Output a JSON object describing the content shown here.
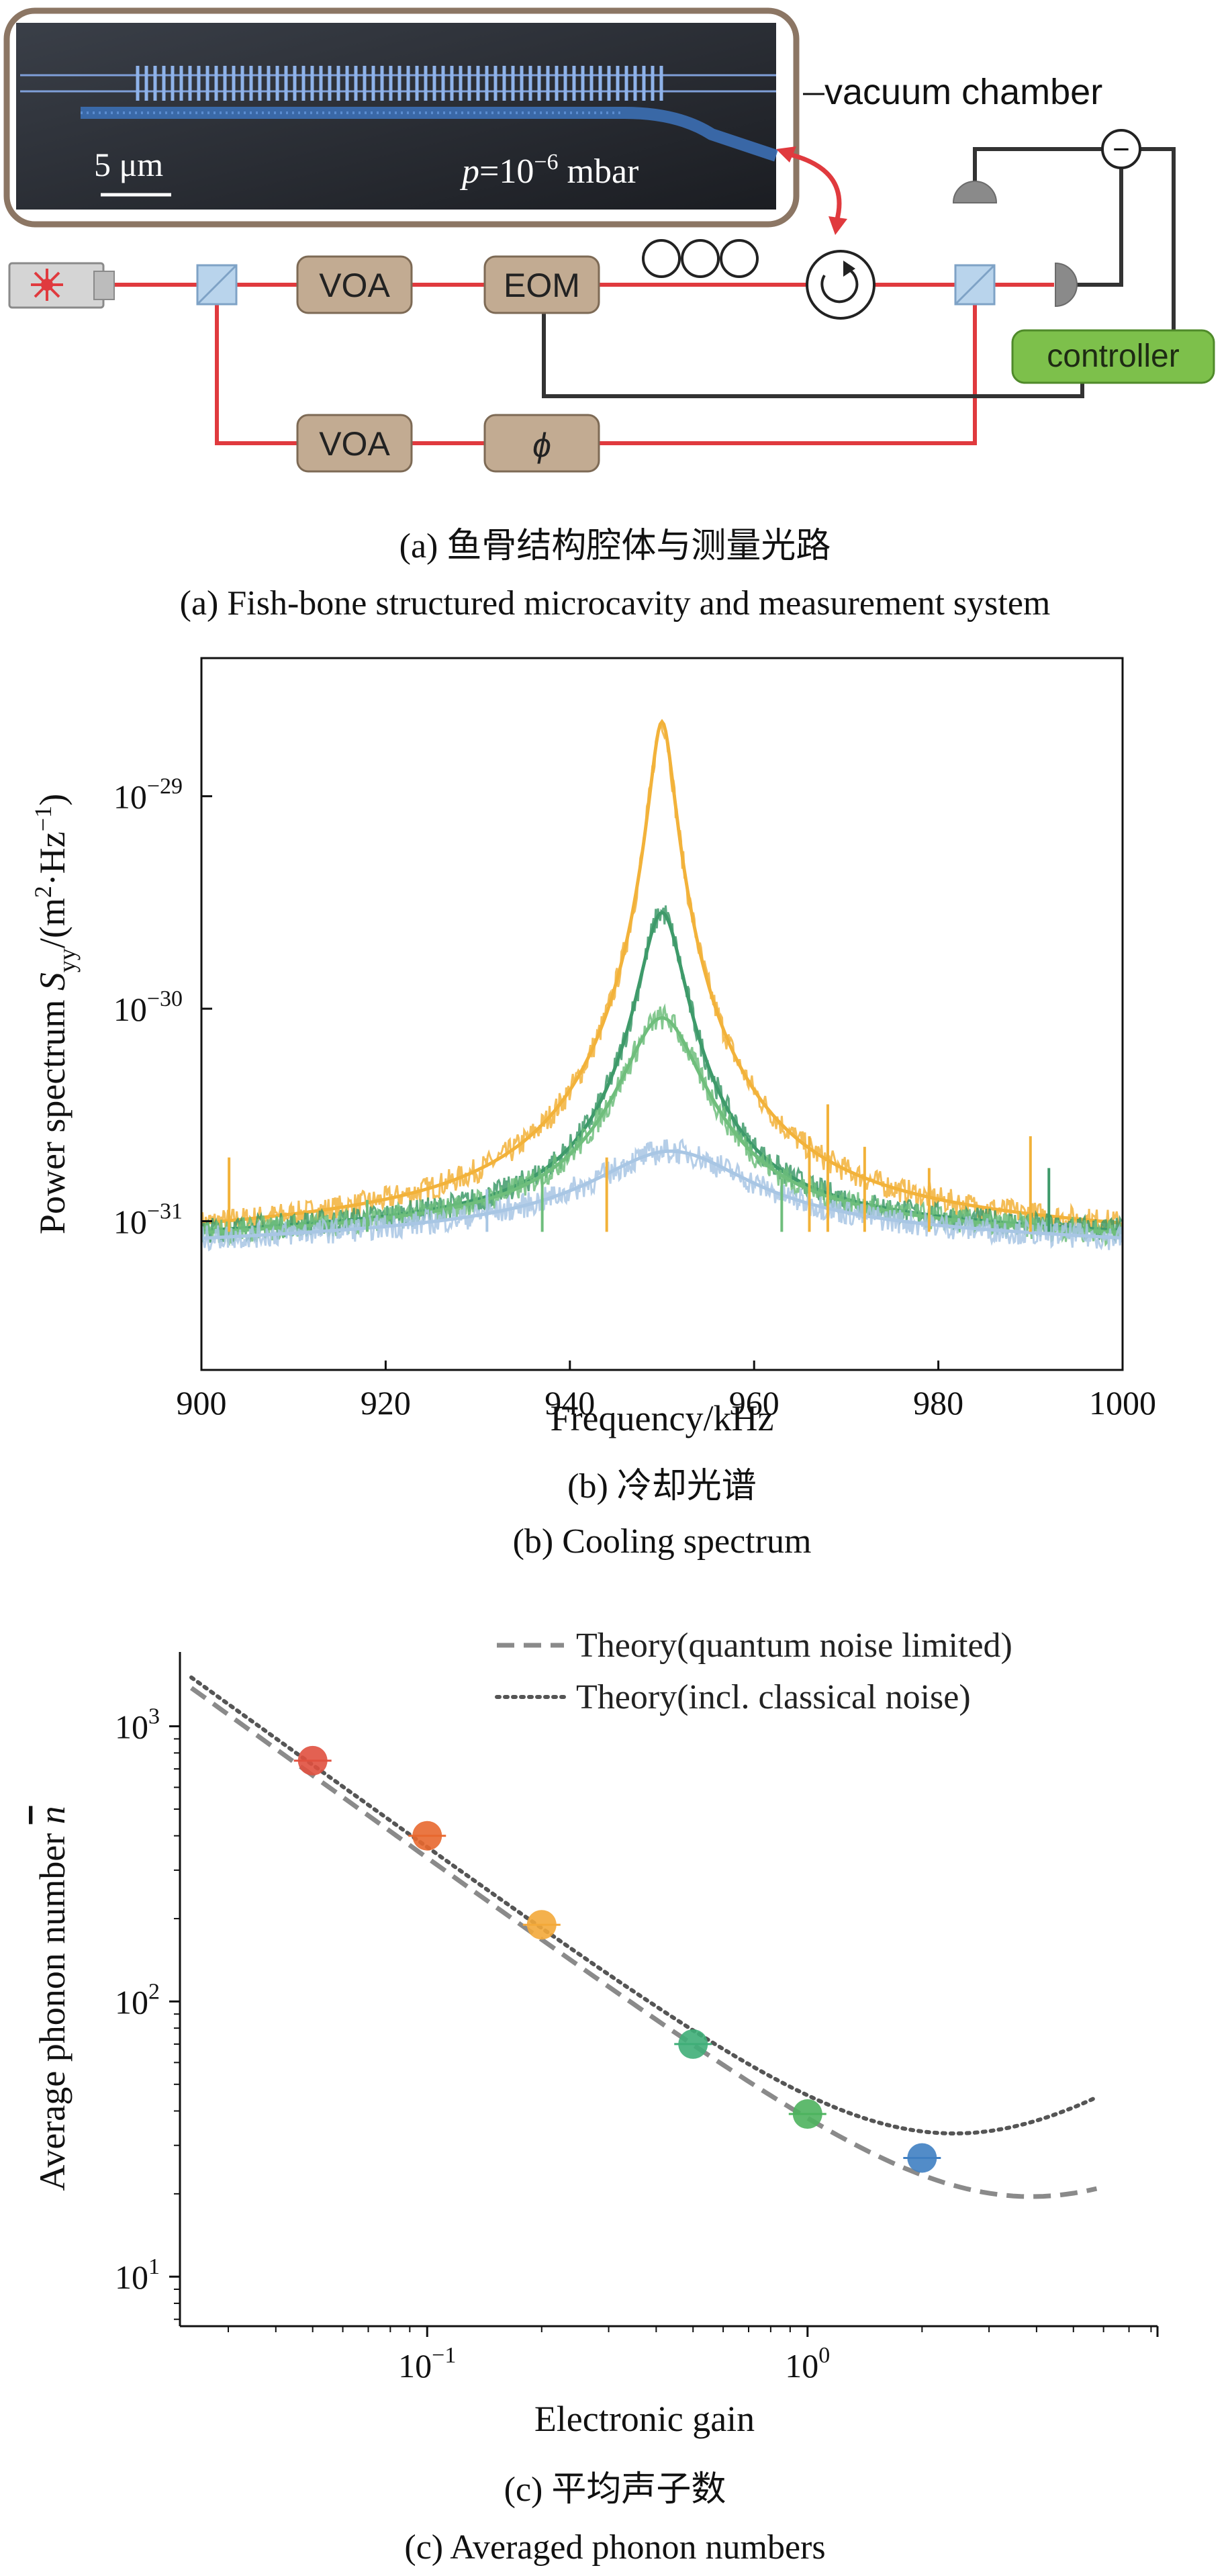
{
  "panel_a": {
    "scale_bar": "5 μm",
    "pressure_text": "p=10−6 mbar",
    "pressure_p": "p",
    "pressure_eq": "=10",
    "pressure_exp": "−6",
    "pressure_unit": " mbar",
    "vacuum_label": "vacuum chamber",
    "box_voa_1": "VOA",
    "box_eom": "EOM",
    "box_voa_2": "VOA",
    "box_phase": "ϕ",
    "controller_label": "controller",
    "minus_sign": "−",
    "caption_cn": "(a) 鱼骨结构腔体与测量光路",
    "caption_en": "(a) Fish-bone structured microcavity and measurement system",
    "colors": {
      "beam": "#e03a3e",
      "box": "#c2ab92",
      "controller": "#7dc04b",
      "cavity": "#3c6fb4"
    }
  },
  "chart_data": [
    {
      "type": "line",
      "title": "",
      "xlabel": "Frequency/kHz",
      "ylabel": "Power spectrum S_yy /(m²·Hz⁻¹)",
      "ylabel_main": "Power spectrum ",
      "ylabel_S": "S",
      "ylabel_sub": "yy",
      "ylabel_unit": "/(m",
      "ylabel_sup2": "2",
      "ylabel_mid": "·Hz",
      "ylabel_supm1": "−1",
      "ylabel_end": ")",
      "x_ticks": [
        "900",
        "920",
        "940",
        "960",
        "980",
        "1000"
      ],
      "y_ticks": [
        "10−31",
        "10−30",
        "10−29"
      ],
      "y_tick_base": "10",
      "y_tick_exps": [
        "−31",
        "−30",
        "−29"
      ],
      "xlim": [
        900,
        1000
      ],
      "ylim_log10": [
        -31.7,
        -28.35
      ],
      "y_scale": "log",
      "grid": false,
      "series": [
        {
          "color": "#f2b23a",
          "center": 950,
          "peak_log10": -28.65,
          "width": 1.2,
          "floor_log10": -31.07
        },
        {
          "color": "#3e9a6a",
          "center": 950,
          "peak_log10": -29.55,
          "width": 2.2,
          "floor_log10": -31.07
        },
        {
          "color": "#6fbe7c",
          "center": 950,
          "peak_log10": -30.05,
          "width": 4.0,
          "floor_log10": -31.08
        },
        {
          "color": "#a8c6e4",
          "center": 951,
          "peak_log10": -30.7,
          "width": 9.0,
          "floor_log10": -31.1
        }
      ],
      "caption_cn": "(b) 冷却光谱",
      "caption_en": "(b) Cooling spectrum"
    },
    {
      "type": "scatter",
      "title": "",
      "xlabel": "Electronic gain",
      "ylabel": "Average phonon number n̄",
      "ylabel_main": "Average phonon number ",
      "ylabel_n": "n",
      "x_scale": "log",
      "y_scale": "log",
      "x_ticks": [
        "10−1",
        "100"
      ],
      "x_tick_base": "10",
      "x_tick_exps": [
        "−1",
        "0"
      ],
      "y_ticks": [
        "101",
        "102",
        "103"
      ],
      "y_tick_base": "10",
      "y_tick_exps": [
        "1",
        "2",
        "3"
      ],
      "xlim_log10": [
        -1.65,
        0.92
      ],
      "ylim_log10": [
        0.82,
        3.27
      ],
      "legend": [
        "Theory(quantum noise limited)",
        "Theory(incl. classical noise)"
      ],
      "legend_placement": "top-right",
      "points": [
        {
          "x": 0.05,
          "y": 750,
          "color": "#e0503f"
        },
        {
          "x": 0.1,
          "y": 400,
          "color": "#e8682f"
        },
        {
          "x": 0.2,
          "y": 190,
          "color": "#f3a83a"
        },
        {
          "x": 0.5,
          "y": 70,
          "color": "#3fae78"
        },
        {
          "x": 1.0,
          "y": 39,
          "color": "#4eb35e"
        },
        {
          "x": 2.0,
          "y": 27,
          "color": "#3f7fc2"
        }
      ],
      "caption_cn": "(c) 平均声子数",
      "caption_en": "(c) Averaged phonon numbers"
    }
  ]
}
